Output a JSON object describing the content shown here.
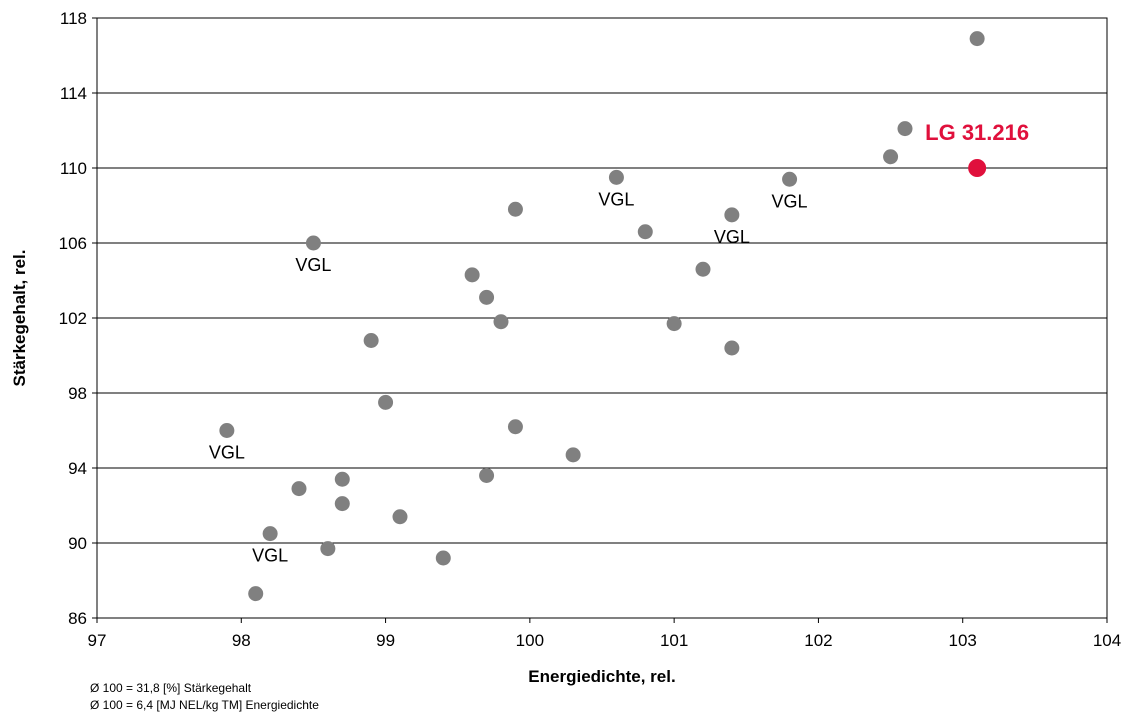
{
  "chart_data": {
    "type": "scatter",
    "xlabel": "Energiedichte, rel.",
    "ylabel": "Stärkegehalt, rel.",
    "xlim": [
      97,
      104
    ],
    "ylim": [
      86,
      118
    ],
    "x_ticks": [
      97,
      98,
      99,
      100,
      101,
      102,
      103,
      104
    ],
    "y_ticks": [
      86,
      90,
      94,
      98,
      102,
      106,
      110,
      114,
      118
    ],
    "grid": "horizontal",
    "legend": "none",
    "point_color": "#808080",
    "highlight_color": "#e0103c",
    "points": [
      {
        "x": 103.1,
        "y": 116.9
      },
      {
        "x": 102.6,
        "y": 112.1
      },
      {
        "x": 102.5,
        "y": 110.6
      },
      {
        "x": 101.8,
        "y": 109.4,
        "label": "VGL",
        "label_pos": "below"
      },
      {
        "x": 100.6,
        "y": 109.5,
        "label": "VGL",
        "label_pos": "below"
      },
      {
        "x": 99.9,
        "y": 107.8
      },
      {
        "x": 101.4,
        "y": 107.5,
        "label": "VGL",
        "label_pos": "below"
      },
      {
        "x": 100.8,
        "y": 106.6
      },
      {
        "x": 98.5,
        "y": 106.0,
        "label": "VGL",
        "label_pos": "below"
      },
      {
        "x": 101.2,
        "y": 104.6
      },
      {
        "x": 99.6,
        "y": 104.3
      },
      {
        "x": 99.7,
        "y": 103.1
      },
      {
        "x": 99.8,
        "y": 101.8
      },
      {
        "x": 101.0,
        "y": 101.7
      },
      {
        "x": 98.9,
        "y": 100.8
      },
      {
        "x": 101.4,
        "y": 100.4
      },
      {
        "x": 99.0,
        "y": 97.5
      },
      {
        "x": 99.9,
        "y": 96.2
      },
      {
        "x": 97.9,
        "y": 96.0,
        "label": "VGL",
        "label_pos": "below"
      },
      {
        "x": 100.3,
        "y": 94.7
      },
      {
        "x": 99.7,
        "y": 93.6
      },
      {
        "x": 98.7,
        "y": 93.4
      },
      {
        "x": 98.4,
        "y": 92.9
      },
      {
        "x": 98.7,
        "y": 92.1
      },
      {
        "x": 99.1,
        "y": 91.4
      },
      {
        "x": 98.2,
        "y": 90.5,
        "label": "VGL",
        "label_pos": "below"
      },
      {
        "x": 98.6,
        "y": 89.7
      },
      {
        "x": 99.4,
        "y": 89.2
      },
      {
        "x": 98.1,
        "y": 87.3
      }
    ],
    "highlight": {
      "x": 103.1,
      "y": 110.0,
      "label": "LG 31.216"
    }
  },
  "footnotes": {
    "line1": "Ø 100 = 31,8 [%] Stärkegehalt",
    "line2": "Ø 100 = 6,4 [MJ NEL/kg TM] Energiedichte"
  }
}
